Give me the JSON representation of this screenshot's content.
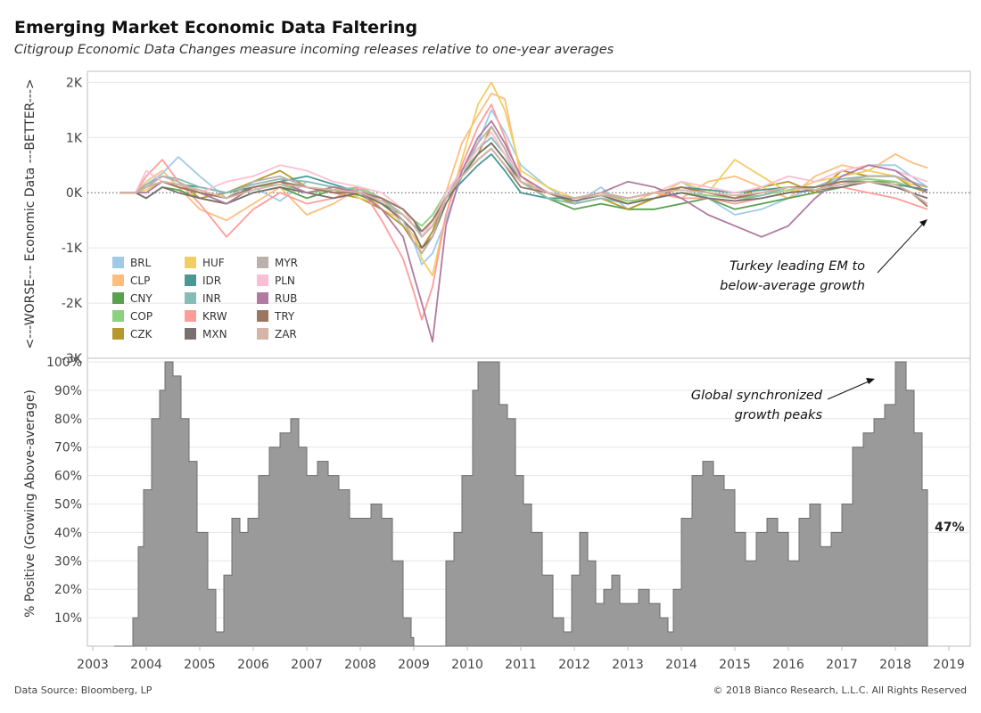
{
  "header": {
    "title": "Emerging Market Economic Data Faltering",
    "subtitle": "Citigroup Economic Data Changes measure incoming releases relative to one-year averages"
  },
  "footer": {
    "source": "Data Source: Bloomberg, LP",
    "copyright": "© 2018 Bianco Research, L.L.C. All Rights Reserved"
  },
  "annotations": {
    "turkey_line1": "Turkey leading EM to",
    "turkey_line2": "below-average growth",
    "global_line1": "Global synchronized",
    "global_line2": "growth peaks",
    "last_value": "47%"
  },
  "colors": {
    "area_fill": "#9a9a9a",
    "area_stroke": "#6e6e6e",
    "grid": "#e6e6e6",
    "axis": "#bdbdbd"
  },
  "chart_data": [
    {
      "type": "line",
      "ylabel": "<---WORSE--- Economic Data ---BETTER--->",
      "ylim": [
        -3000,
        2200
      ],
      "y_ticks": [
        2000,
        1000,
        0,
        -1000,
        -2000,
        -3000
      ],
      "y_tick_labels": [
        "2K",
        "1K",
        "0K",
        "-1K",
        "-2K",
        "-3K"
      ],
      "x_ticks": [
        "2003",
        "2004",
        "2005",
        "2006",
        "2007",
        "2008",
        "2009",
        "2010",
        "2011",
        "2012",
        "2013",
        "2014",
        "2015",
        "2016",
        "2017",
        "2018",
        "2019"
      ],
      "x_range": [
        2002.9,
        2019.4
      ],
      "zero_line": "dotted",
      "legend_position": "lower-left",
      "x": [
        2003.5,
        2003.8,
        2004.0,
        2004.3,
        2004.6,
        2005.0,
        2005.5,
        2006.0,
        2006.5,
        2007.0,
        2007.5,
        2008.0,
        2008.4,
        2008.8,
        2009.0,
        2009.15,
        2009.35,
        2009.6,
        2009.9,
        2010.2,
        2010.45,
        2010.7,
        2011.0,
        2011.5,
        2012.0,
        2012.5,
        2013.0,
        2013.5,
        2014.0,
        2014.5,
        2015.0,
        2015.5,
        2016.0,
        2016.5,
        2017.0,
        2017.5,
        2018.0,
        2018.3,
        2018.6
      ],
      "series": [
        {
          "name": "BRL",
          "color": "#a0cbe8",
          "values": [
            0,
            0,
            150,
            350,
            650,
            300,
            -100,
            100,
            -150,
            200,
            100,
            0,
            -100,
            -600,
            -900,
            -1300,
            -1100,
            -500,
            300,
            900,
            1500,
            1100,
            500,
            100,
            -200,
            100,
            -300,
            -100,
            200,
            -100,
            -400,
            -300,
            -100,
            100,
            300,
            500,
            500,
            300,
            100
          ]
        },
        {
          "name": "CLP",
          "color": "#ffbe7d",
          "values": [
            0,
            0,
            200,
            400,
            100,
            -300,
            -500,
            -200,
            100,
            -400,
            -200,
            100,
            -300,
            -500,
            -800,
            -1100,
            -700,
            0,
            900,
            1400,
            1800,
            1700,
            300,
            -100,
            -200,
            -100,
            -200,
            0,
            -100,
            200,
            300,
            100,
            -100,
            300,
            500,
            400,
            700,
            550,
            450
          ]
        },
        {
          "name": "CNY",
          "color": "#59a14f",
          "values": [
            0,
            0,
            -100,
            100,
            50,
            -100,
            -200,
            0,
            100,
            -100,
            50,
            -50,
            -200,
            -400,
            -600,
            -700,
            -500,
            -100,
            300,
            600,
            800,
            500,
            200,
            -100,
            -300,
            -200,
            -300,
            -300,
            -200,
            -100,
            -300,
            -200,
            -100,
            0,
            100,
            200,
            200,
            100,
            50
          ]
        },
        {
          "name": "COP",
          "color": "#8cd17d",
          "values": [
            0,
            0,
            100,
            200,
            150,
            0,
            -100,
            100,
            150,
            0,
            50,
            100,
            -100,
            -300,
            -500,
            -600,
            -400,
            0,
            400,
            700,
            900,
            600,
            200,
            0,
            -100,
            0,
            -150,
            -100,
            0,
            -50,
            -100,
            -50,
            50,
            100,
            200,
            250,
            200,
            100,
            50
          ]
        },
        {
          "name": "CZK",
          "color": "#b6992d",
          "values": [
            0,
            0,
            100,
            300,
            200,
            -100,
            0,
            200,
            400,
            100,
            0,
            -100,
            -300,
            -600,
            -900,
            -1000,
            -700,
            -100,
            300,
            700,
            1200,
            800,
            200,
            0,
            -200,
            -100,
            -300,
            -100,
            100,
            0,
            -100,
            100,
            200,
            0,
            400,
            300,
            300,
            100,
            0
          ]
        },
        {
          "name": "HUF",
          "color": "#f1ce63",
          "values": [
            0,
            0,
            50,
            200,
            100,
            0,
            -200,
            100,
            200,
            0,
            100,
            -100,
            -200,
            -500,
            -700,
            -1200,
            -1500,
            -400,
            600,
            1600,
            2000,
            1500,
            400,
            100,
            -100,
            0,
            -200,
            -100,
            200,
            0,
            600,
            300,
            0,
            200,
            300,
            400,
            300,
            150,
            100
          ]
        },
        {
          "name": "IDR",
          "color": "#499894",
          "values": [
            0,
            0,
            100,
            200,
            150,
            100,
            0,
            100,
            200,
            300,
            150,
            0,
            -100,
            -300,
            -500,
            -800,
            -600,
            -100,
            200,
            500,
            700,
            400,
            0,
            -100,
            -100,
            0,
            -100,
            0,
            100,
            50,
            0,
            50,
            100,
            50,
            150,
            200,
            150,
            100,
            50
          ]
        },
        {
          "name": "INR",
          "color": "#86bcb6",
          "values": [
            0,
            0,
            150,
            300,
            250,
            100,
            0,
            150,
            250,
            200,
            100,
            50,
            -100,
            -400,
            -600,
            -800,
            -500,
            0,
            400,
            800,
            1000,
            700,
            200,
            -100,
            -200,
            -100,
            -200,
            -100,
            0,
            -100,
            -150,
            -50,
            100,
            100,
            250,
            300,
            300,
            200,
            100
          ]
        },
        {
          "name": "KRW",
          "color": "#ff9d9a",
          "values": [
            0,
            0,
            300,
            600,
            200,
            -200,
            -800,
            -300,
            0,
            -200,
            -100,
            100,
            -500,
            -1200,
            -1800,
            -2300,
            -1700,
            -400,
            500,
            1200,
            1600,
            1000,
            200,
            0,
            -100,
            0,
            -100,
            0,
            -100,
            -100,
            -200,
            -100,
            0,
            50,
            100,
            0,
            -100,
            -200,
            -300
          ]
        },
        {
          "name": "MXN",
          "color": "#79706e",
          "values": [
            0,
            0,
            -100,
            100,
            0,
            -100,
            -200,
            0,
            100,
            0,
            -100,
            0,
            -200,
            -500,
            -700,
            -1000,
            -800,
            -200,
            300,
            700,
            900,
            600,
            200,
            0,
            -150,
            -50,
            -200,
            -100,
            0,
            -100,
            -150,
            -100,
            0,
            50,
            100,
            200,
            100,
            0,
            -100
          ]
        },
        {
          "name": "MYR",
          "color": "#bab0ac",
          "values": [
            0,
            0,
            100,
            300,
            200,
            0,
            -100,
            200,
            300,
            100,
            0,
            50,
            -100,
            -500,
            -900,
            -1100,
            -800,
            -100,
            400,
            900,
            1200,
            800,
            200,
            0,
            -100,
            -50,
            -100,
            0,
            100,
            0,
            -100,
            0,
            100,
            50,
            200,
            300,
            300,
            200,
            100
          ]
        },
        {
          "name": "PLN",
          "color": "#fabfd2",
          "values": [
            0,
            0,
            400,
            200,
            100,
            0,
            200,
            300,
            500,
            400,
            200,
            100,
            0,
            -300,
            -600,
            -800,
            -500,
            0,
            400,
            800,
            1100,
            700,
            300,
            0,
            -100,
            0,
            -100,
            0,
            200,
            100,
            0,
            100,
            300,
            200,
            400,
            500,
            400,
            300,
            200
          ]
        },
        {
          "name": "RUB",
          "color": "#b07aa1",
          "values": [
            0,
            0,
            0,
            200,
            100,
            0,
            -200,
            100,
            200,
            0,
            100,
            0,
            -300,
            -800,
            -1500,
            -2000,
            -2700,
            -600,
            400,
            1000,
            1300,
            900,
            300,
            0,
            -100,
            0,
            200,
            100,
            -100,
            -400,
            -600,
            -800,
            -600,
            -100,
            300,
            500,
            400,
            200,
            0
          ]
        },
        {
          "name": "TRY",
          "color": "#9d7660",
          "values": [
            0,
            0,
            100,
            200,
            100,
            0,
            -100,
            100,
            200,
            100,
            0,
            0,
            -100,
            -300,
            -500,
            -700,
            -500,
            -100,
            300,
            600,
            800,
            500,
            100,
            0,
            -100,
            0,
            -100,
            0,
            100,
            0,
            -100,
            0,
            100,
            100,
            200,
            200,
            150,
            0,
            -250
          ]
        },
        {
          "name": "ZAR",
          "color": "#d7b5a6",
          "values": [
            0,
            0,
            100,
            200,
            150,
            50,
            -100,
            50,
            150,
            100,
            50,
            0,
            -150,
            -400,
            -600,
            -800,
            -600,
            -100,
            300,
            600,
            800,
            500,
            200,
            0,
            -100,
            0,
            -100,
            0,
            50,
            0,
            -50,
            0,
            100,
            50,
            150,
            200,
            150,
            0,
            -200
          ]
        }
      ]
    },
    {
      "type": "area",
      "ylabel": "% Positive (Growing Above-average)",
      "ylim": [
        0,
        100
      ],
      "y_ticks": [
        10,
        20,
        30,
        40,
        50,
        60,
        70,
        80,
        90,
        100
      ],
      "y_tick_labels": [
        "10%",
        "20%",
        "30%",
        "40%",
        "50%",
        "60%",
        "70%",
        "80%",
        "90%",
        "100%"
      ],
      "x_range": [
        2002.9,
        2019.4
      ],
      "x": [
        2003.4,
        2003.7,
        2003.75,
        2003.85,
        2003.95,
        2004.1,
        2004.25,
        2004.35,
        2004.5,
        2004.65,
        2004.8,
        2004.95,
        2005.15,
        2005.3,
        2005.45,
        2005.6,
        2005.75,
        2005.9,
        2006.1,
        2006.3,
        2006.5,
        2006.7,
        2006.85,
        2007.0,
        2007.2,
        2007.4,
        2007.6,
        2007.8,
        2008.0,
        2008.2,
        2008.4,
        2008.6,
        2008.8,
        2008.95,
        2009.0,
        2009.1,
        2009.55,
        2009.6,
        2009.75,
        2009.9,
        2010.1,
        2010.2,
        2010.4,
        2010.6,
        2010.75,
        2010.9,
        2011.05,
        2011.2,
        2011.4,
        2011.6,
        2011.8,
        2011.95,
        2012.1,
        2012.25,
        2012.4,
        2012.55,
        2012.7,
        2012.85,
        2013.0,
        2013.2,
        2013.4,
        2013.6,
        2013.75,
        2013.85,
        2014.0,
        2014.2,
        2014.4,
        2014.6,
        2014.8,
        2015.0,
        2015.2,
        2015.4,
        2015.6,
        2015.8,
        2016.0,
        2016.2,
        2016.4,
        2016.6,
        2016.8,
        2017.0,
        2017.2,
        2017.4,
        2017.6,
        2017.8,
        2018.0,
        2018.2,
        2018.35,
        2018.5,
        2018.6
      ],
      "values": [
        0,
        0,
        10,
        35,
        55,
        80,
        90,
        100,
        95,
        80,
        65,
        40,
        20,
        5,
        25,
        45,
        40,
        45,
        60,
        70,
        75,
        80,
        70,
        60,
        65,
        60,
        55,
        45,
        45,
        50,
        45,
        30,
        10,
        3,
        0,
        0,
        0,
        30,
        40,
        60,
        90,
        100,
        100,
        85,
        80,
        60,
        50,
        40,
        25,
        10,
        5,
        25,
        40,
        30,
        15,
        20,
        25,
        15,
        15,
        20,
        15,
        10,
        5,
        20,
        45,
        60,
        65,
        60,
        55,
        40,
        30,
        40,
        45,
        40,
        30,
        45,
        50,
        35,
        40,
        50,
        70,
        75,
        80,
        85,
        100,
        90,
        75,
        55,
        47
      ],
      "last_value_label": "47%"
    }
  ]
}
